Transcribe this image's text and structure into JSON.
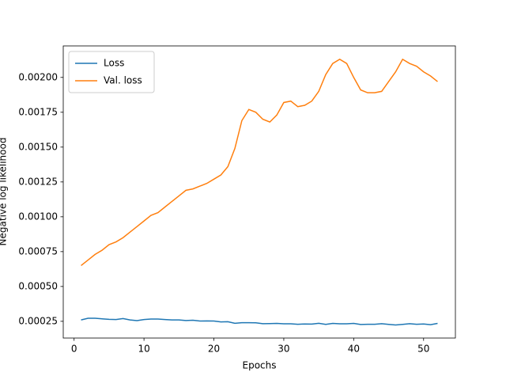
{
  "chart_data": {
    "type": "line",
    "x": [
      1,
      2,
      3,
      4,
      5,
      6,
      7,
      8,
      9,
      10,
      11,
      12,
      13,
      14,
      15,
      16,
      17,
      18,
      19,
      20,
      21,
      22,
      23,
      24,
      25,
      26,
      27,
      28,
      29,
      30,
      31,
      32,
      33,
      34,
      35,
      36,
      37,
      38,
      39,
      40,
      41,
      42,
      43,
      44,
      45,
      46,
      47,
      48,
      49,
      50,
      51,
      52
    ],
    "series": [
      {
        "name": "Loss",
        "color": "#1f77b4",
        "values": [
          0.00026,
          0.000272,
          0.000272,
          0.000268,
          0.000264,
          0.000263,
          0.00027,
          0.00026,
          0.000255,
          0.000263,
          0.000266,
          0.000266,
          0.000263,
          0.00026,
          0.00026,
          0.000256,
          0.000258,
          0.000252,
          0.000253,
          0.000252,
          0.000246,
          0.000247,
          0.000236,
          0.00024,
          0.00024,
          0.000239,
          0.000233,
          0.000234,
          0.000235,
          0.000232,
          0.000232,
          0.000229,
          0.000231,
          0.00023,
          0.000236,
          0.000228,
          0.000235,
          0.000232,
          0.000232,
          0.000235,
          0.000227,
          0.000229,
          0.000229,
          0.000233,
          0.000228,
          0.000224,
          0.000228,
          0.000233,
          0.000229,
          0.000231,
          0.000226,
          0.000235
        ]
      },
      {
        "name": "Val. loss",
        "color": "#ff7f0e",
        "values": [
          0.00065,
          0.00069,
          0.00073,
          0.00076,
          0.0008,
          0.00082,
          0.00085,
          0.00089,
          0.00093,
          0.00097,
          0.00101,
          0.00103,
          0.00107,
          0.00111,
          0.00115,
          0.00119,
          0.0012,
          0.00122,
          0.00124,
          0.00127,
          0.0013,
          0.00136,
          0.00149,
          0.00169,
          0.00177,
          0.00175,
          0.0017,
          0.00168,
          0.00173,
          0.00182,
          0.00183,
          0.00179,
          0.0018,
          0.00183,
          0.0019,
          0.00202,
          0.0021,
          0.00213,
          0.0021,
          0.002,
          0.00191,
          0.00189,
          0.00189,
          0.0019,
          0.00197,
          0.00204,
          0.00213,
          0.0021,
          0.00208,
          0.00204,
          0.00201,
          0.00197
        ]
      }
    ],
    "xlabel": "Epochs",
    "ylabel": "Negative log likelihood",
    "xlim": [
      -1.55,
      54.55
    ],
    "xticks": [
      0,
      10,
      20,
      30,
      40,
      50
    ],
    "ylim": [
      0.00013,
      0.002226
    ],
    "yticks": [
      0.00025,
      {
        "value": 0.0005,
        "label": "0.00050"
      },
      0.00075,
      {
        "value": 0.001,
        "label": "0.00100"
      },
      0.00125,
      {
        "value": 0.0015,
        "label": "0.00150"
      },
      0.00175,
      {
        "value": 0.002,
        "label": "0.00200"
      }
    ],
    "legend": "upper left"
  }
}
